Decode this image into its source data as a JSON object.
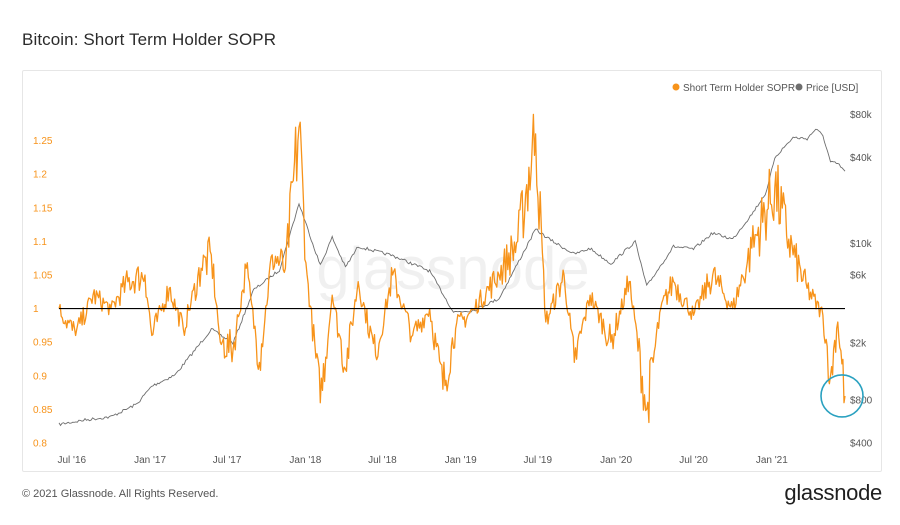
{
  "title": "Bitcoin: Short Term Holder SOPR",
  "footer": {
    "copyright": "© 2021 Glassnode. All Rights Reserved.",
    "logo": "glassnode"
  },
  "watermark": "glassnode",
  "colors": {
    "sopr": "#f7931a",
    "price": "#6e6e6e",
    "baseline": "#000000",
    "highlight": "#2aa1c0"
  },
  "chart_data": {
    "type": "line",
    "x_ticks": [
      "Jul '16",
      "Jan '17",
      "Jul '17",
      "Jan '18",
      "Jul '18",
      "Jan '19",
      "Jul '19",
      "Jan '20",
      "Jul '20",
      "Jan '21"
    ],
    "x_range": [
      "2016-06-01",
      "2021-06-22"
    ],
    "y_left": {
      "range": [
        0.8,
        1.3
      ],
      "ticks": [
        "0.8",
        "0.85",
        "0.9",
        "0.95",
        "1",
        "1.05",
        "1.1",
        "1.15",
        "1.2",
        "1.25"
      ]
    },
    "y_right": {
      "scale": "log",
      "range": [
        400,
        90000
      ],
      "ticks": [
        {
          "label": "$400",
          "value": 400
        },
        {
          "label": "$800",
          "value": 800
        },
        {
          "label": "$2k",
          "value": 2000
        },
        {
          "label": "$6k",
          "value": 6000
        },
        {
          "label": "$10k",
          "value": 10000
        },
        {
          "label": "$40k",
          "value": 40000
        },
        {
          "label": "$80k",
          "value": 80000
        }
      ]
    },
    "baseline": 1,
    "legend_position": "top-right",
    "highlight_note": "circle around latest SOPR low near 0.87",
    "series": [
      {
        "name": "Short Term Holder SOPR",
        "axis": "left",
        "points": [
          [
            "2016-06-01",
            1.0
          ],
          [
            "2016-07-10",
            0.96
          ],
          [
            "2016-08-20",
            1.02
          ],
          [
            "2016-10-01",
            1.0
          ],
          [
            "2016-11-10",
            1.04
          ],
          [
            "2016-12-20",
            1.05
          ],
          [
            "2017-01-05",
            0.96
          ],
          [
            "2017-02-15",
            1.03
          ],
          [
            "2017-03-20",
            0.97
          ],
          [
            "2017-05-01",
            1.06
          ],
          [
            "2017-05-25",
            1.08
          ],
          [
            "2017-06-15",
            0.95
          ],
          [
            "2017-07-15",
            0.94
          ],
          [
            "2017-08-15",
            1.06
          ],
          [
            "2017-09-15",
            0.92
          ],
          [
            "2017-10-15",
            1.08
          ],
          [
            "2017-11-15",
            1.06
          ],
          [
            "2017-12-17",
            1.27
          ],
          [
            "2018-01-05",
            1.05
          ],
          [
            "2018-02-05",
            0.86
          ],
          [
            "2018-03-05",
            1.02
          ],
          [
            "2018-04-05",
            0.91
          ],
          [
            "2018-05-05",
            1.04
          ],
          [
            "2018-06-15",
            0.93
          ],
          [
            "2018-07-25",
            1.05
          ],
          [
            "2018-09-10",
            0.96
          ],
          [
            "2018-10-20",
            1.0
          ],
          [
            "2018-11-20",
            0.88
          ],
          [
            "2018-12-20",
            0.97
          ],
          [
            "2019-02-01",
            1.0
          ],
          [
            "2019-04-01",
            1.05
          ],
          [
            "2019-05-15",
            1.1
          ],
          [
            "2019-06-26",
            1.26
          ],
          [
            "2019-07-20",
            0.98
          ],
          [
            "2019-09-01",
            1.05
          ],
          [
            "2019-09-25",
            0.92
          ],
          [
            "2019-11-01",
            1.02
          ],
          [
            "2019-12-20",
            0.95
          ],
          [
            "2020-02-01",
            1.04
          ],
          [
            "2020-03-13",
            0.85
          ],
          [
            "2020-04-15",
            1.0
          ],
          [
            "2020-05-15",
            1.04
          ],
          [
            "2020-07-01",
            0.99
          ],
          [
            "2020-08-15",
            1.05
          ],
          [
            "2020-10-01",
            1.0
          ],
          [
            "2020-11-15",
            1.09
          ],
          [
            "2021-01-08",
            1.18
          ],
          [
            "2021-02-20",
            1.08
          ],
          [
            "2021-03-25",
            1.03
          ],
          [
            "2021-05-01",
            0.99
          ],
          [
            "2021-05-19",
            0.9
          ],
          [
            "2021-06-05",
            0.98
          ],
          [
            "2021-06-22",
            0.87
          ]
        ]
      },
      {
        "name": "Price [USD]",
        "axis": "right",
        "points": [
          [
            "2016-06-01",
            540
          ],
          [
            "2016-08-01",
            580
          ],
          [
            "2016-10-01",
            610
          ],
          [
            "2016-12-01",
            750
          ],
          [
            "2017-01-05",
            1000
          ],
          [
            "2017-03-01",
            1200
          ],
          [
            "2017-05-25",
            2500
          ],
          [
            "2017-07-15",
            2000
          ],
          [
            "2017-09-01",
            4700
          ],
          [
            "2017-11-01",
            6500
          ],
          [
            "2017-12-17",
            19000
          ],
          [
            "2018-02-05",
            7000
          ],
          [
            "2018-03-05",
            11000
          ],
          [
            "2018-04-05",
            6800
          ],
          [
            "2018-05-05",
            9500
          ],
          [
            "2018-07-25",
            8200
          ],
          [
            "2018-10-20",
            6400
          ],
          [
            "2018-12-15",
            3300
          ],
          [
            "2019-02-01",
            3400
          ],
          [
            "2019-04-01",
            4100
          ],
          [
            "2019-06-26",
            12500
          ],
          [
            "2019-08-01",
            10500
          ],
          [
            "2019-09-25",
            8400
          ],
          [
            "2019-11-01",
            9200
          ],
          [
            "2019-12-20",
            7200
          ],
          [
            "2020-02-15",
            10300
          ],
          [
            "2020-03-13",
            5000
          ],
          [
            "2020-05-15",
            9500
          ],
          [
            "2020-07-01",
            9100
          ],
          [
            "2020-08-15",
            11800
          ],
          [
            "2020-10-01",
            10700
          ],
          [
            "2020-11-15",
            16000
          ],
          [
            "2020-12-20",
            23000
          ],
          [
            "2021-01-08",
            40000
          ],
          [
            "2021-02-20",
            55000
          ],
          [
            "2021-03-25",
            54000
          ],
          [
            "2021-04-14",
            63000
          ],
          [
            "2021-05-01",
            57000
          ],
          [
            "2021-05-19",
            37000
          ],
          [
            "2021-06-05",
            36000
          ],
          [
            "2021-06-22",
            32000
          ]
        ]
      }
    ]
  }
}
